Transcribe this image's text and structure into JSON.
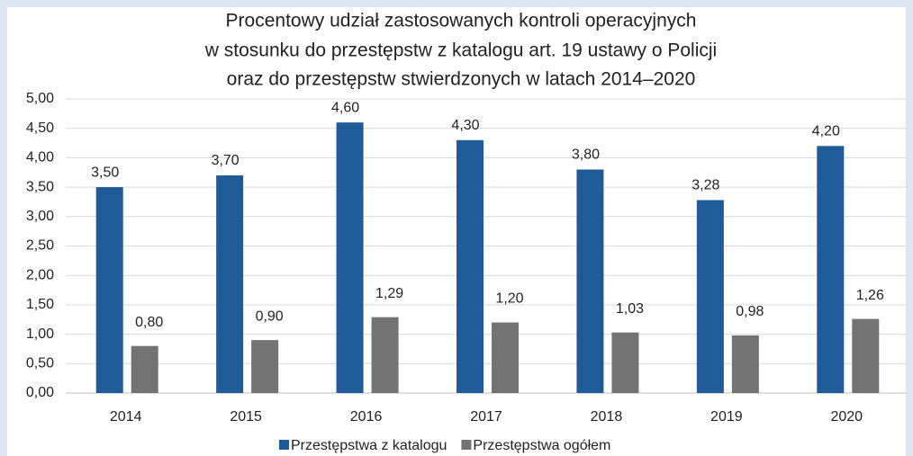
{
  "chart_data": {
    "type": "bar",
    "title": [
      "Procentowy udział zastosowanych kontroli operacyjnych",
      "w stosunku do przestępstw z katalogu art. 19 ustawy o Policji",
      "oraz do przestępstw stwierdzonych w latach 2014–2020"
    ],
    "categories": [
      "2014",
      "2015",
      "2016",
      "2017",
      "2018",
      "2019",
      "2020"
    ],
    "series": [
      {
        "name": "Przestępstwa z katalogu",
        "color": "#1f5a99",
        "values": [
          3.5,
          3.7,
          4.6,
          4.3,
          3.8,
          3.28,
          4.2
        ],
        "value_labels": [
          "3,50",
          "3,70",
          "4,60",
          "4,30",
          "3,80",
          "3,28",
          "4,20"
        ]
      },
      {
        "name": "Przestępstwa ogółem",
        "color": "#737373",
        "values": [
          0.8,
          0.9,
          1.29,
          1.2,
          1.03,
          0.98,
          1.26
        ],
        "value_labels": [
          "0,80",
          "0,90",
          "1,29",
          "1,20",
          "1,03",
          "0,98",
          "1,26"
        ]
      }
    ],
    "ylim": [
      0,
      5
    ],
    "yticks": [
      {
        "value": 0,
        "label": "0,00"
      },
      {
        "value": 0.5,
        "label": "0,50"
      },
      {
        "value": 1,
        "label": "1,00"
      },
      {
        "value": 1.5,
        "label": "1,50"
      },
      {
        "value": 2,
        "label": "2,00"
      },
      {
        "value": 2.5,
        "label": "2,50"
      },
      {
        "value": 3,
        "label": "3,00"
      },
      {
        "value": 3.5,
        "label": "3,50"
      },
      {
        "value": 4,
        "label": "4,00"
      },
      {
        "value": 4.5,
        "label": "4,50"
      },
      {
        "value": 5,
        "label": "5,00"
      }
    ],
    "grid": true,
    "legend": "bottom"
  }
}
